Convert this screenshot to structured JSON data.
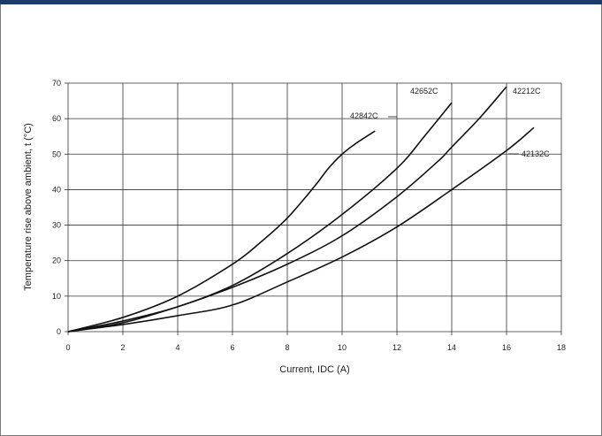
{
  "chart_data": {
    "type": "line",
    "title": "",
    "xlabel": "Current, IDC (A)",
    "ylabel": "Temperature rise above ambient, t (°C)",
    "xlim": [
      0,
      18
    ],
    "ylim": [
      0,
      70
    ],
    "x_ticks": [
      "0",
      "2",
      "4",
      "6",
      "8",
      "10",
      "12",
      "14",
      "16",
      "18"
    ],
    "y_ticks": [
      "0",
      "10",
      "20",
      "30",
      "40",
      "50",
      "60",
      "70"
    ],
    "grid": true,
    "legend": "none",
    "series": [
      {
        "name": "42842C",
        "x": [
          0,
          2,
          4,
          6,
          7,
          8,
          9,
          9.5,
          10,
          10.5,
          11.2
        ],
        "y": [
          0,
          4,
          10,
          19,
          25,
          32,
          41,
          46,
          50,
          53,
          56.5
        ]
      },
      {
        "name": "42652C",
        "x": [
          0,
          2,
          4,
          6,
          8,
          10,
          12,
          13,
          14
        ],
        "y": [
          0,
          3,
          7,
          13,
          22,
          33,
          46,
          55,
          64.5
        ]
      },
      {
        "name": "42212C",
        "x": [
          0,
          2,
          4,
          6,
          8,
          10,
          12,
          13.5,
          14,
          15,
          16
        ],
        "y": [
          0,
          2.5,
          7,
          12.5,
          19,
          27,
          38,
          48,
          52,
          60,
          69
        ]
      },
      {
        "name": "42132C",
        "x": [
          0,
          2,
          4,
          6,
          8,
          10,
          12,
          14,
          16,
          17
        ],
        "y": [
          0,
          2,
          4.5,
          7.5,
          14,
          21,
          29.5,
          40,
          51,
          57.5
        ]
      }
    ]
  }
}
